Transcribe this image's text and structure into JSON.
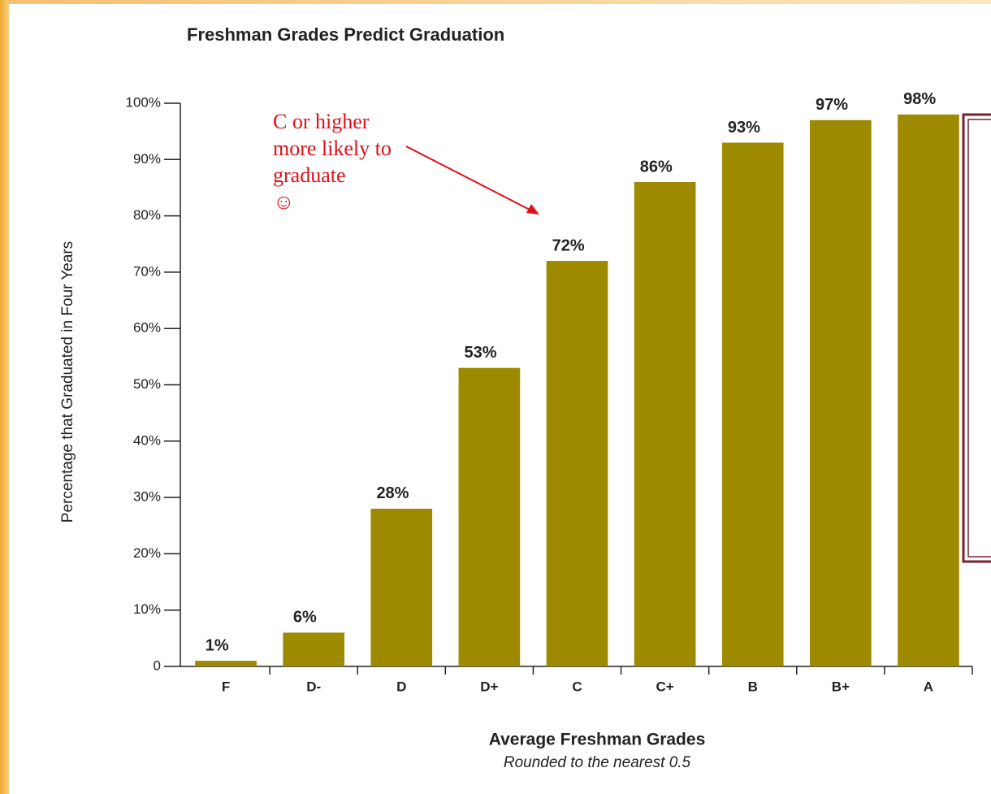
{
  "chart_data": {
    "type": "bar",
    "title": "Freshman Grades Predict Graduation",
    "ylabel": "Percentage that Graduated in Four Years",
    "xlabel": "Average Freshman Grades",
    "xlabel_note": "Rounded to the nearest 0.5",
    "annotation": [
      "C or higher",
      "more likely to",
      "graduate",
      "☺"
    ],
    "categories": [
      "F",
      "D-",
      "D",
      "D+",
      "C",
      "C+",
      "B",
      "B+",
      "A"
    ],
    "values": [
      1,
      6,
      28,
      53,
      72,
      86,
      93,
      97,
      98
    ],
    "value_labels": [
      "1%",
      "6%",
      "28%",
      "53%",
      "72%",
      "86%",
      "93%",
      "97%",
      "98%"
    ],
    "color": "#9e8a00",
    "ylim": [
      0,
      100
    ],
    "yticks": [
      0,
      {
        "value": 10,
        "label": "10%"
      },
      {
        "value": 20,
        "label": "20%"
      },
      {
        "value": 30,
        "label": "30%"
      },
      {
        "value": 40,
        "label": "40%"
      },
      {
        "value": 50,
        "label": "50%"
      },
      {
        "value": 60,
        "label": "60%"
      },
      {
        "value": 70,
        "label": "70%"
      },
      {
        "value": 80,
        "label": "80%"
      },
      {
        "value": 90,
        "label": "90%"
      },
      {
        "value": 100,
        "label": "100%"
      }
    ]
  }
}
